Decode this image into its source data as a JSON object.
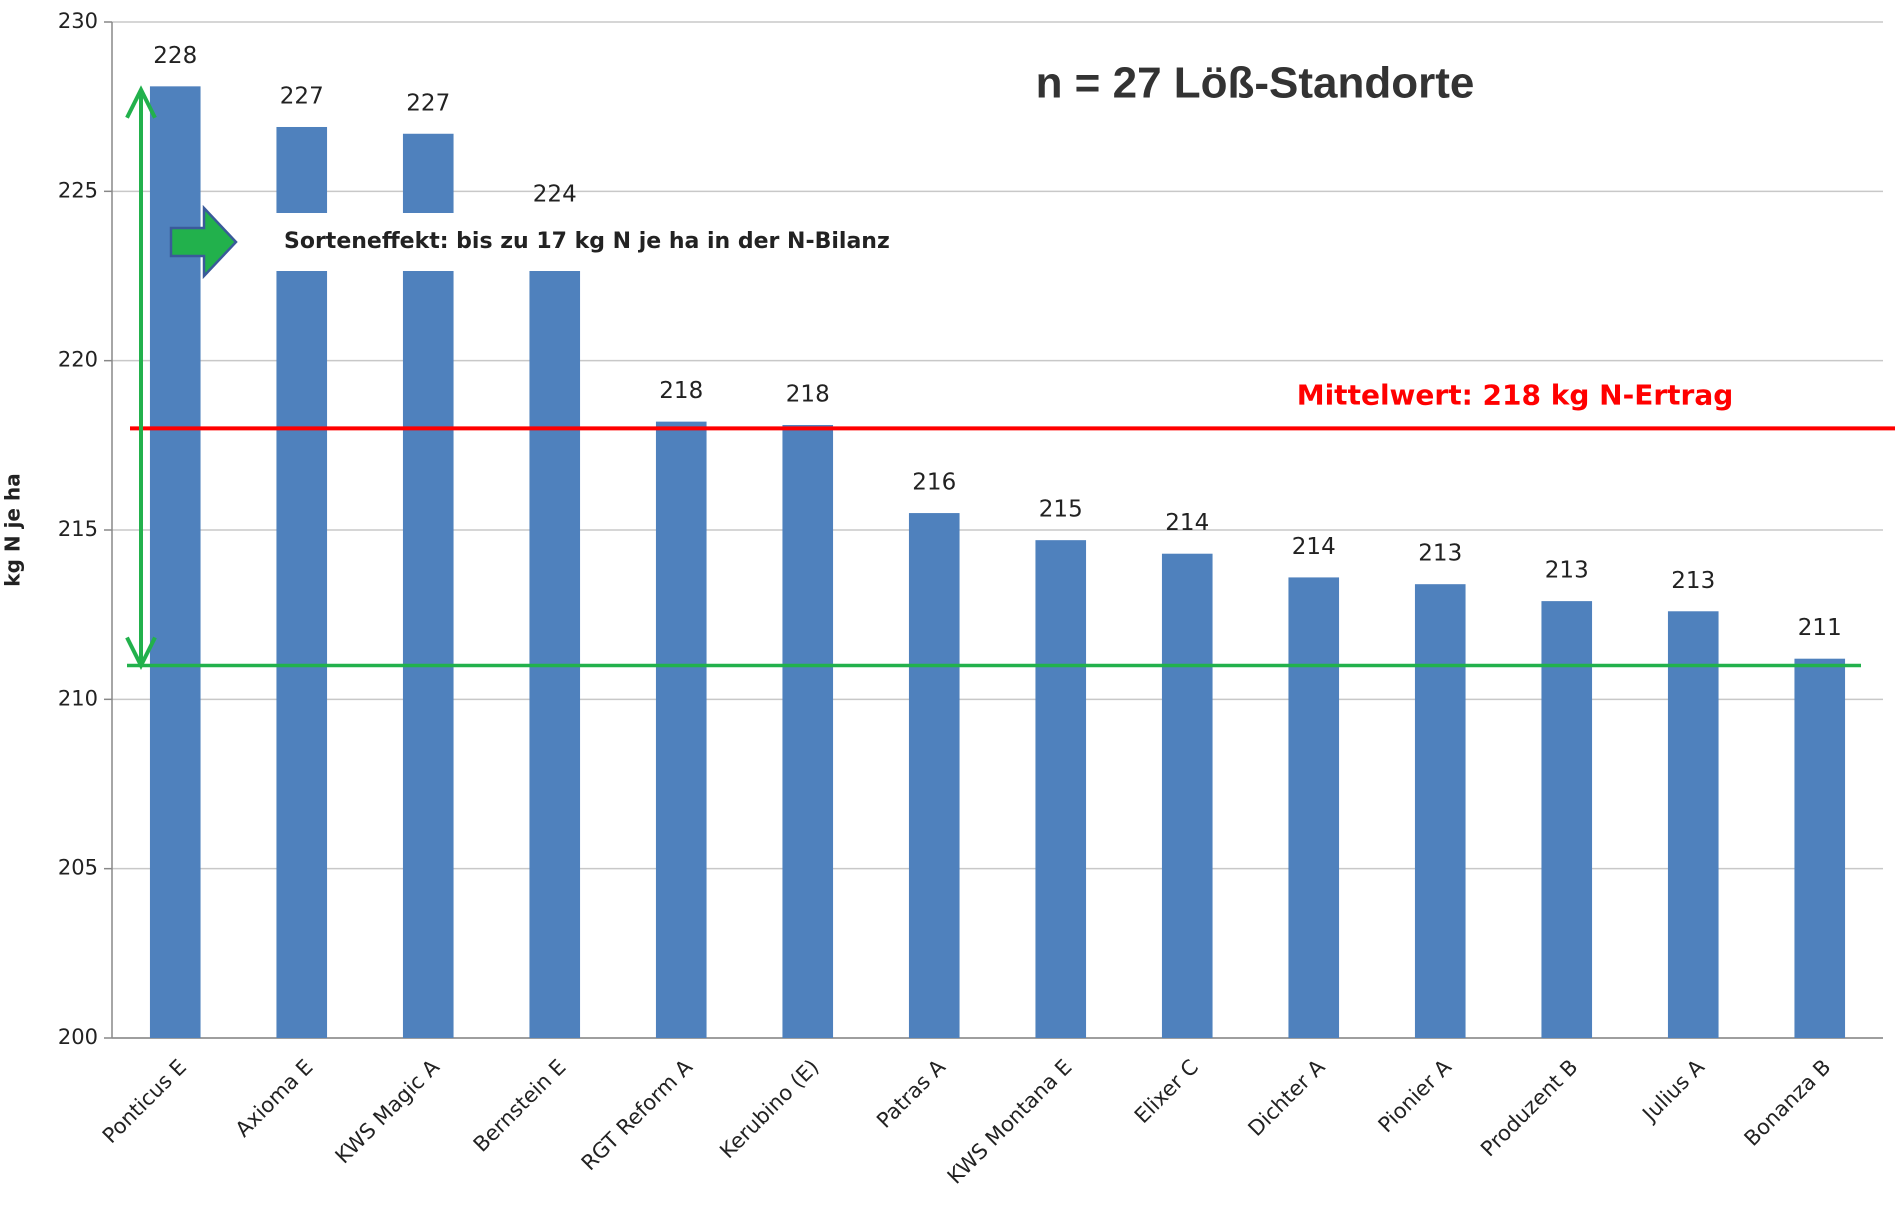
{
  "chart_data": {
    "type": "bar",
    "title": "n = 27 Löß-Standorte",
    "y_label": "kg N je ha",
    "categories": [
      "Ponticus E",
      "Axioma E",
      "KWS Magic A",
      "Bernstein E",
      "RGT Reform A",
      "Kerubino (E)",
      "Patras A",
      "KWS Montana E",
      "Elixer C",
      "Dichter A",
      "Pionier A",
      "Produzent B",
      "Julius A",
      "Bonanza B"
    ],
    "values": [
      228.1,
      226.9,
      226.7,
      224.0,
      218.2,
      218.1,
      215.5,
      214.7,
      214.3,
      213.6,
      213.4,
      212.9,
      212.6,
      211.2
    ],
    "value_labels": [
      "228",
      "227",
      "227",
      "224",
      "218",
      "218",
      "216",
      "215",
      "214",
      "214",
      "213",
      "213",
      "213",
      "211"
    ],
    "color": "#4f81bd",
    "ylim": [
      200,
      230
    ],
    "yticks": [
      200,
      205,
      210,
      215,
      220,
      225,
      230
    ],
    "grid": true,
    "mean_line": {
      "value": 218,
      "label": "Mittelwert: 218 kg N-Ertrag",
      "color": "#ff0000"
    },
    "min_line": {
      "value": 211,
      "color": "#22b14c"
    },
    "range_arrow": {
      "from": 211,
      "to": 228,
      "label": "Sorteneffekt: bis zu 17 kg N je ha in der N-Bilanz",
      "color": "#22b14c"
    }
  }
}
